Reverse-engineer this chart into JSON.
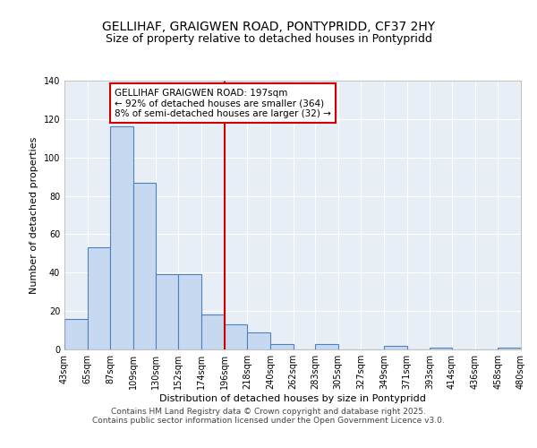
{
  "title": "GELLIHAF, GRAIGWEN ROAD, PONTYPRIDD, CF37 2HY",
  "subtitle": "Size of property relative to detached houses in Pontypridd",
  "xlabel": "Distribution of detached houses by size in Pontypridd",
  "ylabel": "Number of detached properties",
  "bin_labels": [
    "43sqm",
    "65sqm",
    "87sqm",
    "109sqm",
    "130sqm",
    "152sqm",
    "174sqm",
    "196sqm",
    "218sqm",
    "240sqm",
    "262sqm",
    "283sqm",
    "305sqm",
    "327sqm",
    "349sqm",
    "371sqm",
    "393sqm",
    "414sqm",
    "436sqm",
    "458sqm",
    "480sqm"
  ],
  "bar_values": [
    16,
    53,
    116,
    87,
    39,
    39,
    18,
    13,
    9,
    3,
    0,
    3,
    0,
    0,
    2,
    0,
    1,
    0,
    0,
    1
  ],
  "bin_edges": [
    43,
    65,
    87,
    109,
    130,
    152,
    174,
    196,
    218,
    240,
    262,
    283,
    305,
    327,
    349,
    371,
    393,
    414,
    436,
    458,
    480
  ],
  "bar_color": "#c6d9f0",
  "bar_edge_color": "#4f81bd",
  "vline_x": 196,
  "vline_color": "#cc0000",
  "annotation_title": "GELLIHAF GRAIGWEN ROAD: 197sqm",
  "annotation_line1": "← 92% of detached houses are smaller (364)",
  "annotation_line2": "8% of semi-detached houses are larger (32) →",
  "annotation_box_color": "#cc0000",
  "ylim": [
    0,
    140
  ],
  "yticks": [
    0,
    20,
    40,
    60,
    80,
    100,
    120,
    140
  ],
  "bg_color": "#e8eef5",
  "grid_color": "#ffffff",
  "footer_line1": "Contains HM Land Registry data © Crown copyright and database right 2025.",
  "footer_line2": "Contains public sector information licensed under the Open Government Licence v3.0.",
  "title_fontsize": 10,
  "subtitle_fontsize": 9,
  "axis_label_fontsize": 8,
  "tick_fontsize": 7,
  "annotation_fontsize": 7.5,
  "footer_fontsize": 6.5
}
